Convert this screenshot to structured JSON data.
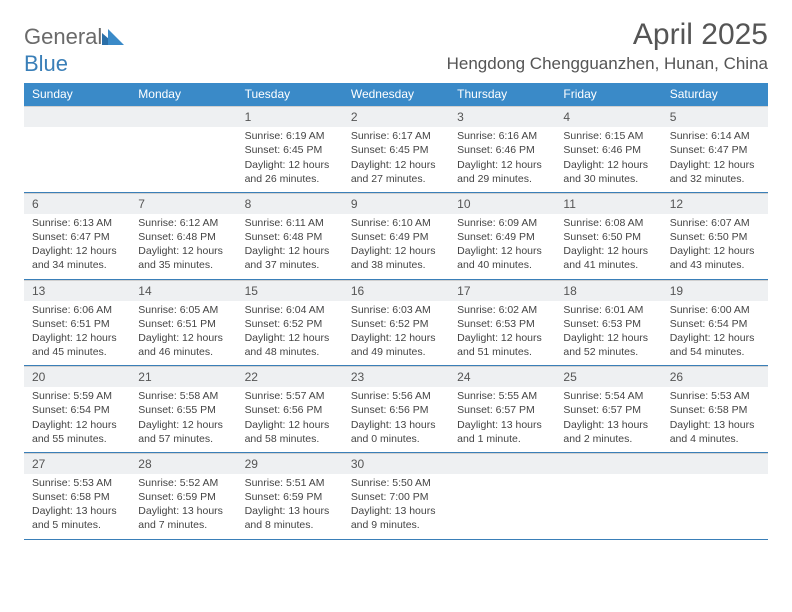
{
  "brand": {
    "part1": "General",
    "part2": "Blue"
  },
  "title": "April 2025",
  "location": "Hengdong Chengguanzhen, Hunan, China",
  "colors": {
    "header_bg": "#3a8ac8",
    "header_text": "#ffffff",
    "rule": "#3a7fb8",
    "daynum_bg": "#eef0f2",
    "text": "#444444"
  },
  "dayNames": [
    "Sunday",
    "Monday",
    "Tuesday",
    "Wednesday",
    "Thursday",
    "Friday",
    "Saturday"
  ],
  "weeks": [
    [
      null,
      null,
      {
        "n": "1",
        "sr": "6:19 AM",
        "ss": "6:45 PM",
        "dl": "12 hours and 26 minutes."
      },
      {
        "n": "2",
        "sr": "6:17 AM",
        "ss": "6:45 PM",
        "dl": "12 hours and 27 minutes."
      },
      {
        "n": "3",
        "sr": "6:16 AM",
        "ss": "6:46 PM",
        "dl": "12 hours and 29 minutes."
      },
      {
        "n": "4",
        "sr": "6:15 AM",
        "ss": "6:46 PM",
        "dl": "12 hours and 30 minutes."
      },
      {
        "n": "5",
        "sr": "6:14 AM",
        "ss": "6:47 PM",
        "dl": "12 hours and 32 minutes."
      }
    ],
    [
      {
        "n": "6",
        "sr": "6:13 AM",
        "ss": "6:47 PM",
        "dl": "12 hours and 34 minutes."
      },
      {
        "n": "7",
        "sr": "6:12 AM",
        "ss": "6:48 PM",
        "dl": "12 hours and 35 minutes."
      },
      {
        "n": "8",
        "sr": "6:11 AM",
        "ss": "6:48 PM",
        "dl": "12 hours and 37 minutes."
      },
      {
        "n": "9",
        "sr": "6:10 AM",
        "ss": "6:49 PM",
        "dl": "12 hours and 38 minutes."
      },
      {
        "n": "10",
        "sr": "6:09 AM",
        "ss": "6:49 PM",
        "dl": "12 hours and 40 minutes."
      },
      {
        "n": "11",
        "sr": "6:08 AM",
        "ss": "6:50 PM",
        "dl": "12 hours and 41 minutes."
      },
      {
        "n": "12",
        "sr": "6:07 AM",
        "ss": "6:50 PM",
        "dl": "12 hours and 43 minutes."
      }
    ],
    [
      {
        "n": "13",
        "sr": "6:06 AM",
        "ss": "6:51 PM",
        "dl": "12 hours and 45 minutes."
      },
      {
        "n": "14",
        "sr": "6:05 AM",
        "ss": "6:51 PM",
        "dl": "12 hours and 46 minutes."
      },
      {
        "n": "15",
        "sr": "6:04 AM",
        "ss": "6:52 PM",
        "dl": "12 hours and 48 minutes."
      },
      {
        "n": "16",
        "sr": "6:03 AM",
        "ss": "6:52 PM",
        "dl": "12 hours and 49 minutes."
      },
      {
        "n": "17",
        "sr": "6:02 AM",
        "ss": "6:53 PM",
        "dl": "12 hours and 51 minutes."
      },
      {
        "n": "18",
        "sr": "6:01 AM",
        "ss": "6:53 PM",
        "dl": "12 hours and 52 minutes."
      },
      {
        "n": "19",
        "sr": "6:00 AM",
        "ss": "6:54 PM",
        "dl": "12 hours and 54 minutes."
      }
    ],
    [
      {
        "n": "20",
        "sr": "5:59 AM",
        "ss": "6:54 PM",
        "dl": "12 hours and 55 minutes."
      },
      {
        "n": "21",
        "sr": "5:58 AM",
        "ss": "6:55 PM",
        "dl": "12 hours and 57 minutes."
      },
      {
        "n": "22",
        "sr": "5:57 AM",
        "ss": "6:56 PM",
        "dl": "12 hours and 58 minutes."
      },
      {
        "n": "23",
        "sr": "5:56 AM",
        "ss": "6:56 PM",
        "dl": "13 hours and 0 minutes."
      },
      {
        "n": "24",
        "sr": "5:55 AM",
        "ss": "6:57 PM",
        "dl": "13 hours and 1 minute."
      },
      {
        "n": "25",
        "sr": "5:54 AM",
        "ss": "6:57 PM",
        "dl": "13 hours and 2 minutes."
      },
      {
        "n": "26",
        "sr": "5:53 AM",
        "ss": "6:58 PM",
        "dl": "13 hours and 4 minutes."
      }
    ],
    [
      {
        "n": "27",
        "sr": "5:53 AM",
        "ss": "6:58 PM",
        "dl": "13 hours and 5 minutes."
      },
      {
        "n": "28",
        "sr": "5:52 AM",
        "ss": "6:59 PM",
        "dl": "13 hours and 7 minutes."
      },
      {
        "n": "29",
        "sr": "5:51 AM",
        "ss": "6:59 PM",
        "dl": "13 hours and 8 minutes."
      },
      {
        "n": "30",
        "sr": "5:50 AM",
        "ss": "7:00 PM",
        "dl": "13 hours and 9 minutes."
      },
      null,
      null,
      null
    ]
  ],
  "labels": {
    "sunrise": "Sunrise:",
    "sunset": "Sunset:",
    "daylight": "Daylight:"
  }
}
